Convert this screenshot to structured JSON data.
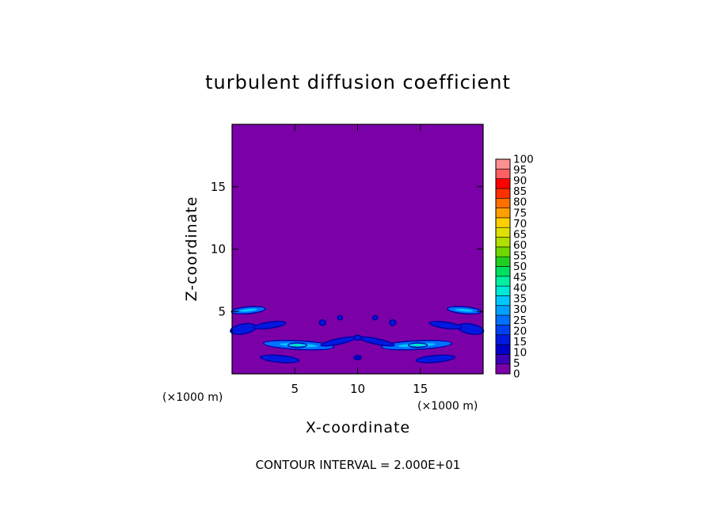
{
  "chart_data": {
    "type": "heatmap",
    "title": "turbulent diffusion coefficient",
    "xlabel": "X-coordinate",
    "ylabel": "Z-coordinate",
    "x_unit": "(×1000 m)",
    "z_unit": "(×1000 m)",
    "xlim": [
      0,
      20
    ],
    "ylim": [
      0,
      20
    ],
    "x_ticks": [
      5,
      10,
      15
    ],
    "y_ticks": [
      5,
      10,
      15
    ],
    "contour_interval_text": "CONTOUR INTERVAL = 2.000E+01",
    "colorbar": {
      "labels": [
        "0",
        "5",
        "10",
        "15",
        "20",
        "25",
        "30",
        "35",
        "40",
        "45",
        "50",
        "55",
        "60",
        "65",
        "70",
        "75",
        "80",
        "85",
        "90",
        "95",
        "100"
      ],
      "colors": [
        "#7b00a8",
        "#3c00b8",
        "#0000c8",
        "#0018e0",
        "#0040f0",
        "#0070ff",
        "#00a0ff",
        "#00c8ff",
        "#00e8d8",
        "#00f0a0",
        "#00e060",
        "#20d020",
        "#70d800",
        "#b0e000",
        "#e0e000",
        "#ffd000",
        "#ffa000",
        "#ff7000",
        "#ff3000",
        "#ff0000",
        "#ff6060",
        "#ff9090"
      ]
    },
    "background_color": "#7b00a8",
    "features": [
      {
        "x": 1.3,
        "z": 5.1,
        "len": 2.6,
        "w": 0.45,
        "tilt": -5,
        "level": 20
      },
      {
        "x": 18.5,
        "z": 5.1,
        "len": 2.6,
        "w": 0.45,
        "tilt": 5,
        "level": 20
      },
      {
        "x": 0.9,
        "z": 3.6,
        "len": 2.0,
        "w": 0.7,
        "tilt": -10,
        "level": 10
      },
      {
        "x": 19.0,
        "z": 3.6,
        "len": 2.0,
        "w": 0.7,
        "tilt": 10,
        "level": 10
      },
      {
        "x": 3.0,
        "z": 3.9,
        "len": 2.5,
        "w": 0.4,
        "tilt": -8,
        "level": 10
      },
      {
        "x": 17.0,
        "z": 3.9,
        "len": 2.5,
        "w": 0.4,
        "tilt": 8,
        "level": 10
      },
      {
        "x": 5.3,
        "z": 2.3,
        "len": 5.5,
        "w": 0.6,
        "tilt": 3,
        "level": 20
      },
      {
        "x": 14.7,
        "z": 2.3,
        "len": 5.5,
        "w": 0.6,
        "tilt": -3,
        "level": 20
      },
      {
        "x": 5.2,
        "z": 2.3,
        "len": 1.4,
        "w": 0.25,
        "tilt": 0,
        "level": 30
      },
      {
        "x": 14.8,
        "z": 2.3,
        "len": 1.4,
        "w": 0.25,
        "tilt": 0,
        "level": 30
      },
      {
        "x": 8.5,
        "z": 2.6,
        "len": 2.8,
        "w": 0.35,
        "tilt": -12,
        "level": 10
      },
      {
        "x": 11.5,
        "z": 2.6,
        "len": 2.8,
        "w": 0.35,
        "tilt": 12,
        "level": 10
      },
      {
        "x": 3.8,
        "z": 1.2,
        "len": 3.0,
        "w": 0.45,
        "tilt": 5,
        "level": 10
      },
      {
        "x": 16.2,
        "z": 1.2,
        "len": 3.0,
        "w": 0.45,
        "tilt": -5,
        "level": 10
      },
      {
        "x": 7.2,
        "z": 4.1,
        "len": 0.4,
        "w": 0.35,
        "tilt": 0,
        "level": 10
      },
      {
        "x": 12.8,
        "z": 4.1,
        "len": 0.4,
        "w": 0.35,
        "tilt": 0,
        "level": 10
      },
      {
        "x": 8.6,
        "z": 4.5,
        "len": 0.3,
        "w": 0.25,
        "tilt": 0,
        "level": 10
      },
      {
        "x": 11.4,
        "z": 4.5,
        "len": 0.3,
        "w": 0.25,
        "tilt": 0,
        "level": 10
      },
      {
        "x": 10.0,
        "z": 1.3,
        "len": 0.5,
        "w": 0.25,
        "tilt": 0,
        "level": 5
      },
      {
        "x": 10.0,
        "z": 2.9,
        "len": 0.5,
        "w": 0.3,
        "tilt": 0,
        "level": 10
      }
    ]
  }
}
